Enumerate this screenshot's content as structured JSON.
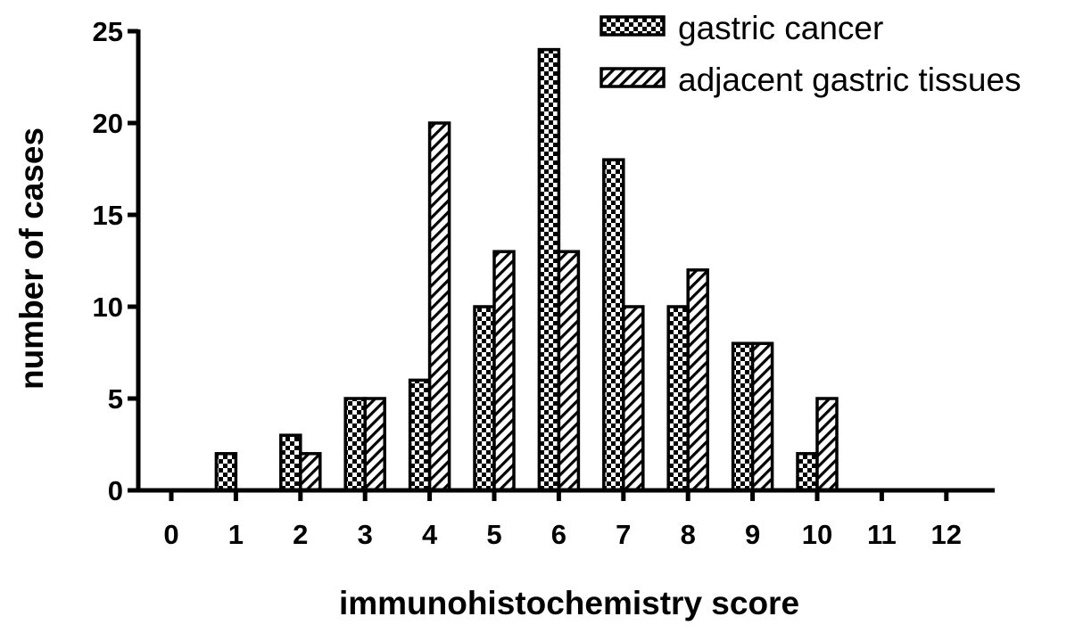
{
  "chart_data": {
    "type": "bar",
    "categories": [
      "0",
      "1",
      "2",
      "3",
      "4",
      "5",
      "6",
      "7",
      "8",
      "9",
      "10",
      "11",
      "12"
    ],
    "series": [
      {
        "name": "gastric cancer",
        "pattern": "checker",
        "values": [
          0,
          2,
          3,
          5,
          6,
          10,
          24,
          18,
          10,
          8,
          2,
          0,
          0
        ]
      },
      {
        "name": "adjacent gastric tissues",
        "pattern": "diagonal-hatch",
        "values": [
          0,
          0,
          2,
          5,
          20,
          13,
          13,
          10,
          12,
          8,
          5,
          0,
          0
        ]
      }
    ],
    "xlabel": "immunohistochemistry score",
    "ylabel": "number of cases",
    "ylim": [
      0,
      25
    ],
    "yticks": [
      "0",
      "5",
      "10",
      "15",
      "20",
      "25"
    ],
    "grid": false,
    "legend_position": "top-right",
    "colors": {
      "ink": "#000000",
      "background": "#ffffff"
    }
  }
}
